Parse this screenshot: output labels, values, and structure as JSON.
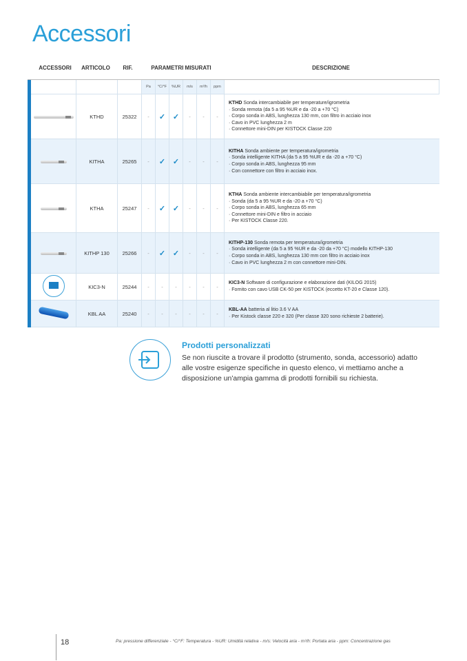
{
  "title": "Accessori",
  "headers": {
    "accessori": "ACCESSORI",
    "articolo": "ARTICOLO",
    "rif": "RIF.",
    "parametri": "PARAMETRI MISURATI",
    "descrizione": "DESCRIZIONE"
  },
  "units": [
    "Pa",
    "°C/°F",
    "%UR",
    "m/s",
    "m³/h",
    "ppm"
  ],
  "rows": [
    {
      "image": "probe-long",
      "articolo": "KTHD",
      "rif": "25322",
      "params": [
        "-",
        "check",
        "check",
        "-",
        "-",
        "-"
      ],
      "desc_title": "KTHD",
      "desc_sub": " Sonda intercambiabile per temperature/igrometria",
      "bullets": [
        "Sonda remota (da 5 a 95 %UR e da -20 a +70 °C)",
        "Corpo sonda in ABS, lunghezza 130 mm, con filtro in acciaio inox",
        "Cavo in PVC lunghezza 2 m",
        "Connettore mini-DIN per KISTOCK Classe 220"
      ]
    },
    {
      "image": "probe-short",
      "articolo": "KITHA",
      "rif": "25265",
      "params": [
        "-",
        "check",
        "check",
        "-",
        "-",
        "-"
      ],
      "desc_title": "KITHA",
      "desc_sub": " Sonda ambiente per temperatura/igrometria",
      "bullets": [
        "Sonda intelligente KITHA (da 5 a 95 %UR e da -20 a +70 °C)",
        "Corpo sonda in ABS, lunghezza 95 mm",
        "Con connettore con filtro in acciaio inox."
      ]
    },
    {
      "image": "probe-short",
      "articolo": "KTHA",
      "rif": "25247",
      "params": [
        "-",
        "check",
        "check",
        "-",
        "-",
        "-"
      ],
      "desc_title": "KTHA",
      "desc_sub": " Sonda ambiente intercambiabile per temperatura/igrometria",
      "bullets": [
        "Sonda (da 5 a 95 %UR e da -20 a +70 °C)",
        "Corpo sonda in ABS, lunghezza 65 mm",
        "Connettore mini-DIN e filtro in acciaio",
        "Per KISTOCK Classe 220."
      ]
    },
    {
      "image": "probe-cable",
      "articolo": "KITHP 130",
      "rif": "25266",
      "params": [
        "-",
        "check",
        "check",
        "-",
        "-",
        "-"
      ],
      "desc_title": "KITHP-130",
      "desc_sub": " Sonda remota per temperatura/igrometria",
      "bullets": [
        "Sonda intelligente (da 5 a 95 %UR e da -20 da +70 °C) modello KITHP-130",
        "Corpo sonda in ABS, lunghezza 130 mm con filtro in acciaio inox",
        "Cavo in PVC lunghezza 2 m con connettore mini-DIN."
      ]
    },
    {
      "image": "software-icon",
      "articolo": "KIC3-N",
      "rif": "25244",
      "params": [
        "-",
        "-",
        "-",
        "-",
        "-",
        "-"
      ],
      "desc_title": "KIC3-N",
      "desc_sub": " Software di configurazione e elaborazione dati (KILOG 2015)",
      "bullets": [
        "Fornito con cavo USB CK-50 per KISTOCK (eccetto KT-20 e Classe 120)."
      ]
    },
    {
      "image": "battery",
      "articolo": "KBL AA",
      "rif": "25240",
      "params": [
        "-",
        "-",
        "-",
        "-",
        "-",
        "-"
      ],
      "desc_title": "KBL-AA",
      "desc_sub": " batteria al litio 3.6 V AA",
      "bullets": [
        "Per Kistock classe 220 e 320 (Per classe 320 sono richieste 2 batterie)."
      ]
    }
  ],
  "promo": {
    "icon": "arrow-into-box-icon",
    "title": "Prodotti personalizzati",
    "text": "Se non riuscite a trovare il prodotto (strumento, sonda, accessorio) adatto alle vostre esigenze specifiche in questo elenco, vi mettiamo anche a disposizione un'ampia gamma di prodotti fornibili su richiesta."
  },
  "footer": {
    "page": "18",
    "legend": "Pa: pressione differenziale - °C/°F: Temperatura - %UR: Umidità relativa - m/s: Velocità aria - m³/h: Portata aria - ppm: Concentrazione gas"
  },
  "colors": {
    "accent": "#2a9fd8",
    "bar": "#1b7fc4",
    "row_alt": "#e8f2fb"
  }
}
